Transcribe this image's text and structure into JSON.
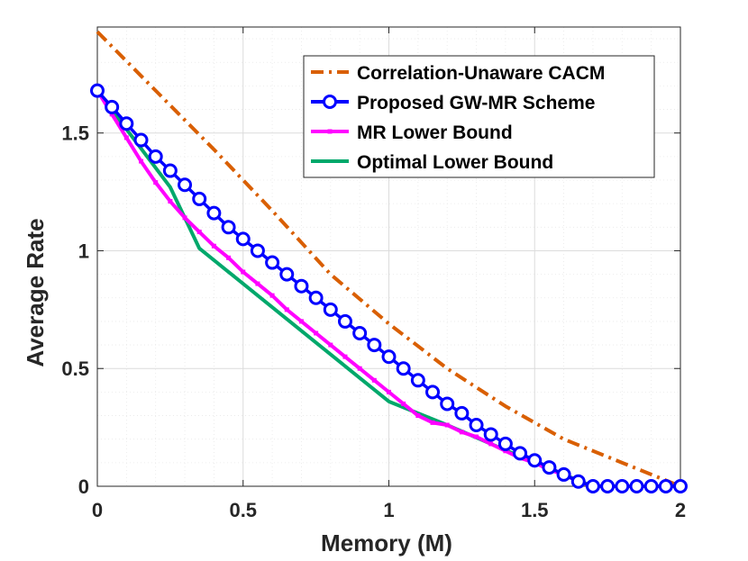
{
  "chart_data": {
    "type": "line",
    "title": "",
    "xlabel": "Memory (M)",
    "ylabel": "Average Rate",
    "xlim": [
      0,
      2
    ],
    "ylim": [
      0,
      1.95
    ],
    "xticks": [
      0,
      0.5,
      1,
      1.5,
      2
    ],
    "xtick_labels": [
      "0",
      "0.5",
      "1",
      "1.5",
      "2"
    ],
    "yticks": [
      0,
      0.5,
      1,
      1.5
    ],
    "ytick_labels": [
      "0",
      "0.5",
      "1",
      "1.5"
    ],
    "grid": true,
    "legend_position": "top-right",
    "series": [
      {
        "name": "Correlation-Unaware CACM",
        "color": "#D95F02",
        "style": "dash-dot",
        "marker": "none",
        "x": [
          0,
          0.2,
          0.4,
          0.6,
          0.8,
          1.0,
          1.2,
          1.4,
          1.6,
          1.8,
          2.0
        ],
        "y": [
          1.93,
          1.68,
          1.43,
          1.17,
          0.9,
          0.69,
          0.5,
          0.34,
          0.2,
          0.1,
          0.0
        ]
      },
      {
        "name": "Proposed GW-MR Scheme",
        "color": "#0000FF",
        "style": "solid",
        "marker": "circle",
        "x": [
          0,
          0.05,
          0.1,
          0.15,
          0.2,
          0.25,
          0.3,
          0.35,
          0.4,
          0.45,
          0.5,
          0.55,
          0.6,
          0.65,
          0.7,
          0.75,
          0.8,
          0.85,
          0.9,
          0.95,
          1.0,
          1.05,
          1.1,
          1.15,
          1.2,
          1.25,
          1.3,
          1.35,
          1.4,
          1.45,
          1.5,
          1.55,
          1.6,
          1.65,
          1.7,
          1.75,
          1.8,
          1.85,
          1.9,
          1.95,
          2.0
        ],
        "y": [
          1.68,
          1.61,
          1.54,
          1.47,
          1.4,
          1.34,
          1.28,
          1.22,
          1.16,
          1.1,
          1.05,
          1.0,
          0.95,
          0.9,
          0.85,
          0.8,
          0.75,
          0.7,
          0.65,
          0.6,
          0.55,
          0.5,
          0.45,
          0.4,
          0.35,
          0.31,
          0.26,
          0.22,
          0.18,
          0.14,
          0.11,
          0.08,
          0.05,
          0.02,
          0.0,
          0.0,
          0.0,
          0.0,
          0.0,
          0.0,
          0.0
        ]
      },
      {
        "name": "MR Lower Bound",
        "color": "#FF00FF",
        "style": "solid",
        "marker": "small-dot",
        "x": [
          0,
          0.05,
          0.1,
          0.15,
          0.2,
          0.25,
          0.3,
          0.35,
          0.4,
          0.45,
          0.5,
          0.55,
          0.6,
          0.65,
          0.7,
          0.75,
          0.8,
          0.85,
          0.9,
          0.95,
          1.0,
          1.05,
          1.1,
          1.15,
          1.2,
          1.25,
          1.3,
          1.35,
          1.4,
          1.45,
          1.5,
          1.55,
          1.6,
          1.65,
          1.7,
          1.75,
          1.8,
          1.85,
          1.9,
          1.95,
          2.0
        ],
        "y": [
          1.68,
          1.58,
          1.48,
          1.38,
          1.29,
          1.21,
          1.14,
          1.08,
          1.02,
          0.97,
          0.91,
          0.86,
          0.81,
          0.75,
          0.7,
          0.65,
          0.6,
          0.55,
          0.5,
          0.45,
          0.4,
          0.35,
          0.3,
          0.27,
          0.26,
          0.23,
          0.21,
          0.18,
          0.15,
          0.12,
          0.1,
          0.07,
          0.05,
          0.02,
          0.0,
          0.0,
          0.0,
          0.0,
          0.0,
          0.0,
          0.0
        ]
      },
      {
        "name": "Optimal Lower Bound",
        "color": "#00A86B",
        "style": "solid",
        "marker": "none",
        "x": [
          0,
          0.25,
          0.35,
          1.0,
          1.2,
          1.5,
          1.7,
          2.0
        ],
        "y": [
          1.68,
          1.27,
          1.01,
          0.36,
          0.26,
          0.1,
          0.0,
          0.0
        ]
      }
    ]
  }
}
